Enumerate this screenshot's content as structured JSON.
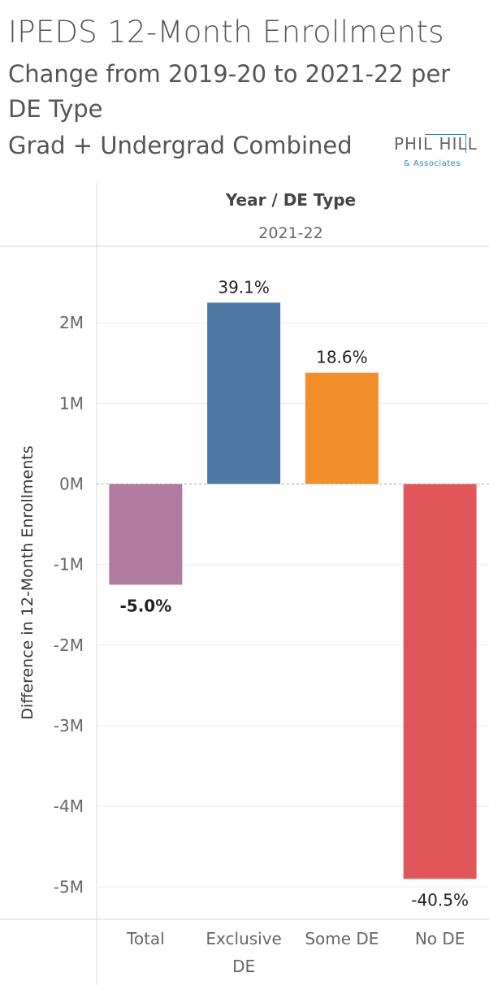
{
  "title": "IPEDS 12-Month Enrollments",
  "subtitle_lines": [
    "Change from 2019-20 to 2021-22 per",
    "DE Type",
    "Grad + Undergrad Combined"
  ],
  "logo": {
    "name": "PHIL HILL",
    "tagline": "& Associates"
  },
  "header": {
    "field": "Year / DE Type",
    "year": "2021-22"
  },
  "colors": {
    "total": "#b07aa1",
    "exclusive_de": "#4e79a7",
    "some_de": "#f28e2b",
    "no_de": "#e15759",
    "logo_accent": "#2a87b8"
  },
  "chart_data": {
    "type": "bar",
    "title": "IPEDS 12-Month Enrollments",
    "ylabel": "Difference in 12-Month Enrollments",
    "xlabel": "",
    "categories": [
      {
        "name": "Total",
        "label_lines": [
          "Total"
        ]
      },
      {
        "name": "Exclusive DE",
        "label_lines": [
          "Exclusive",
          "DE"
        ]
      },
      {
        "name": "Some DE",
        "label_lines": [
          "Some DE"
        ]
      },
      {
        "name": "No DE",
        "label_lines": [
          "No DE"
        ]
      }
    ],
    "values": [
      -1250000,
      2250000,
      1380000,
      -4900000
    ],
    "data_labels": [
      "-5.0%",
      "39.1%",
      "18.6%",
      "-40.5%"
    ],
    "ylim": [
      -5400000,
      2950000
    ],
    "yticks": [
      {
        "value": 2000000,
        "label": "2M"
      },
      {
        "value": 1000000,
        "label": "1M"
      },
      {
        "value": 0,
        "label": "0M"
      },
      {
        "value": -1000000,
        "label": "-1M"
      },
      {
        "value": -2000000,
        "label": "-2M"
      },
      {
        "value": -3000000,
        "label": "-3M"
      },
      {
        "value": -4000000,
        "label": "-4M"
      },
      {
        "value": -5000000,
        "label": "-5M"
      }
    ],
    "grid": true
  }
}
